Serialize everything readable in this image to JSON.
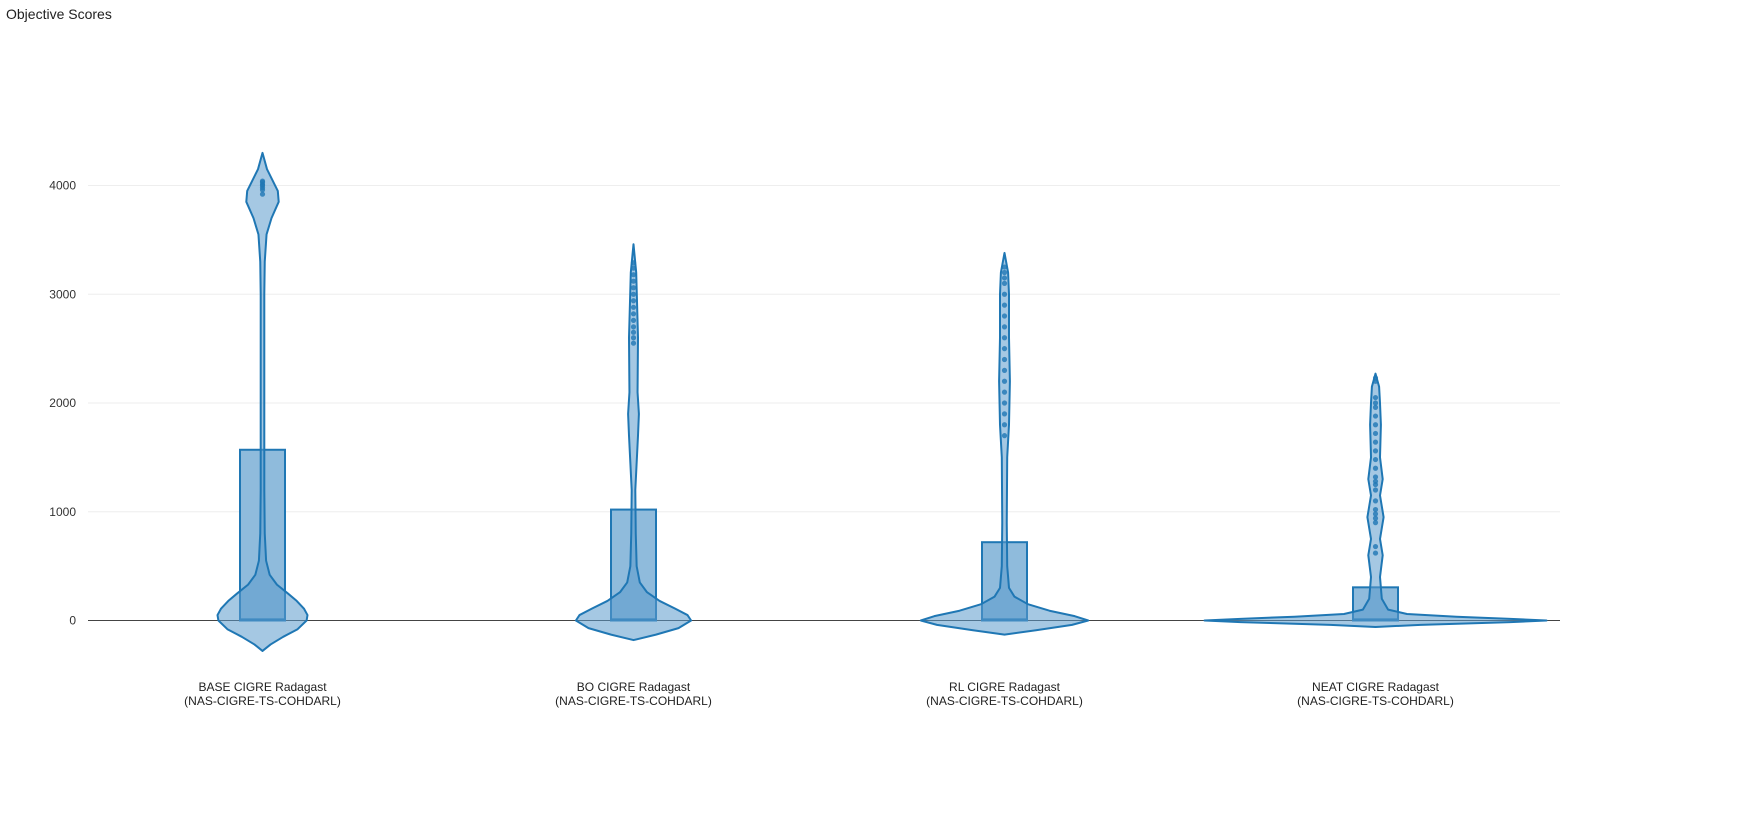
{
  "chart_data": {
    "type": "violin",
    "title": "Objective Scores",
    "xlabel": "",
    "ylabel": "",
    "y_ticks": [
      0,
      1000,
      2000,
      3000,
      4000
    ],
    "ylim": [
      -450,
      4850
    ],
    "grid": true,
    "colors": {
      "stroke": "#1f77b4",
      "box_fill": "#8fbbdc",
      "violin_fill": "#5b9bcc",
      "grid": "#eeeeee",
      "zero_line": "#444444"
    },
    "categories": [
      {
        "label_line1": "BASE CIGRE Radagast",
        "label_line2": "(NAS-CIGRE-TS-COHDARL)",
        "box": {
          "q1": 0,
          "median": 10,
          "q3": 1570
        },
        "violin": {
          "min": -280,
          "max": 4300,
          "profile": [
            [
              -280,
              0
            ],
            [
              -220,
              0.09
            ],
            [
              -150,
              0.23
            ],
            [
              -80,
              0.39
            ],
            [
              0,
              0.49
            ],
            [
              50,
              0.5
            ],
            [
              110,
              0.46
            ],
            [
              180,
              0.38
            ],
            [
              250,
              0.28
            ],
            [
              330,
              0.16
            ],
            [
              420,
              0.08
            ],
            [
              550,
              0.04
            ],
            [
              800,
              0.025
            ],
            [
              1200,
              0.02
            ],
            [
              2000,
              0.02
            ],
            [
              3000,
              0.02
            ],
            [
              3300,
              0.025
            ],
            [
              3550,
              0.045
            ],
            [
              3700,
              0.1
            ],
            [
              3850,
              0.18
            ],
            [
              3950,
              0.17
            ],
            [
              4050,
              0.11
            ],
            [
              4150,
              0.05
            ],
            [
              4300,
              0
            ]
          ],
          "points": [
            3920,
            3960,
            3980,
            4000,
            4010,
            4030,
            4040
          ]
        }
      },
      {
        "label_line1": "BO CIGRE Radagast",
        "label_line2": "(NAS-CIGRE-TS-COHDARL)",
        "box": {
          "q1": 0,
          "median": 10,
          "q3": 1020
        },
        "violin": {
          "min": -180,
          "max": 3460,
          "profile": [
            [
              -180,
              0
            ],
            [
              -130,
              0.25
            ],
            [
              -70,
              0.5
            ],
            [
              0,
              0.64
            ],
            [
              50,
              0.6
            ],
            [
              110,
              0.46
            ],
            [
              180,
              0.29
            ],
            [
              260,
              0.15
            ],
            [
              350,
              0.07
            ],
            [
              500,
              0.035
            ],
            [
              800,
              0.025
            ],
            [
              1200,
              0.02
            ],
            [
              1700,
              0.05
            ],
            [
              1900,
              0.06
            ],
            [
              2100,
              0.045
            ],
            [
              2600,
              0.05
            ],
            [
              2900,
              0.04
            ],
            [
              3200,
              0.03
            ],
            [
              3460,
              0
            ]
          ],
          "points": [
            2550,
            2600,
            2650,
            2700,
            2760,
            2820,
            2880,
            2940,
            3000,
            3060,
            3120,
            3180,
            3240,
            3290
          ]
        }
      },
      {
        "label_line1": "RL CIGRE Radagast",
        "label_line2": "(NAS-CIGRE-TS-COHDARL)",
        "box": {
          "q1": 0,
          "median": 10,
          "q3": 720
        },
        "violin": {
          "min": -130,
          "max": 3380,
          "profile": [
            [
              -130,
              0
            ],
            [
              -90,
              0.35
            ],
            [
              -40,
              0.75
            ],
            [
              0,
              0.93
            ],
            [
              40,
              0.78
            ],
            [
              90,
              0.5
            ],
            [
              150,
              0.26
            ],
            [
              220,
              0.11
            ],
            [
              300,
              0.05
            ],
            [
              500,
              0.03
            ],
            [
              900,
              0.025
            ],
            [
              1500,
              0.03
            ],
            [
              1800,
              0.05
            ],
            [
              2200,
              0.06
            ],
            [
              2600,
              0.05
            ],
            [
              3000,
              0.05
            ],
            [
              3200,
              0.04
            ],
            [
              3380,
              0
            ]
          ],
          "points": [
            1700,
            1800,
            1900,
            2000,
            2100,
            2200,
            2300,
            2400,
            2500,
            2600,
            2700,
            2800,
            2900,
            3000,
            3100,
            3150,
            3200,
            3250
          ]
        }
      },
      {
        "label_line1": "NEAT CIGRE Radagast",
        "label_line2": "(NAS-CIGRE-TS-COHDARL)",
        "box": {
          "q1": 0,
          "median": 10,
          "q3": 305
        },
        "violin": {
          "min": -60,
          "max": 2270,
          "profile": [
            [
              -60,
              0
            ],
            [
              -40,
              0.5
            ],
            [
              -15,
              1.5
            ],
            [
              0,
              1.9
            ],
            [
              15,
              1.5
            ],
            [
              35,
              0.9
            ],
            [
              60,
              0.35
            ],
            [
              100,
              0.14
            ],
            [
              200,
              0.07
            ],
            [
              400,
              0.05
            ],
            [
              600,
              0.08
            ],
            [
              750,
              0.05
            ],
            [
              950,
              0.09
            ],
            [
              1150,
              0.05
            ],
            [
              1300,
              0.08
            ],
            [
              1500,
              0.05
            ],
            [
              1800,
              0.06
            ],
            [
              2000,
              0.05
            ],
            [
              2150,
              0.04
            ],
            [
              2270,
              0
            ]
          ],
          "points": [
            620,
            680,
            900,
            940,
            980,
            1020,
            1100,
            1200,
            1250,
            1280,
            1320,
            1400,
            1480,
            1560,
            1640,
            1720,
            1800,
            1880,
            1960,
            2000,
            2050,
            2200,
            2230
          ]
        }
      }
    ]
  }
}
